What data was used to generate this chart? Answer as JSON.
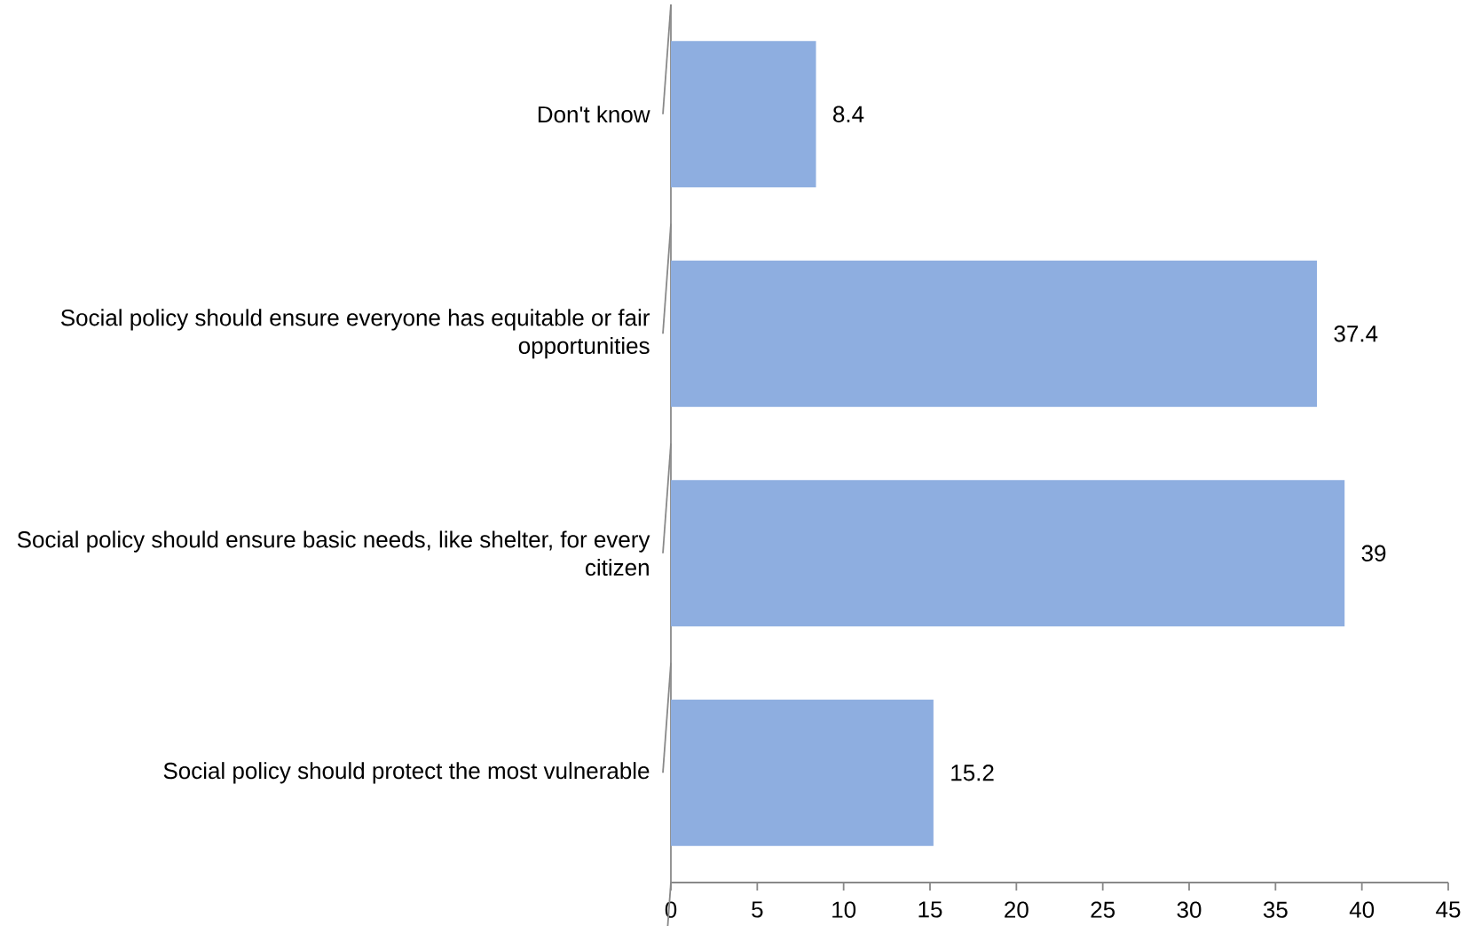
{
  "chart_data": {
    "type": "bar",
    "orientation": "horizontal",
    "categories": [
      "Don't know",
      "Social policy should ensure everyone has equitable or fair opportunities",
      "Social policy should ensure basic needs, like shelter, for every citizen",
      "Social policy should protect the most vulnerable"
    ],
    "values": [
      8.4,
      37.4,
      39,
      15.2
    ],
    "color": "#8eaee0",
    "data_labels": true,
    "xlim": [
      0,
      45
    ],
    "xticks": [
      0,
      5,
      10,
      15,
      20,
      25,
      30,
      35,
      40,
      45
    ]
  }
}
